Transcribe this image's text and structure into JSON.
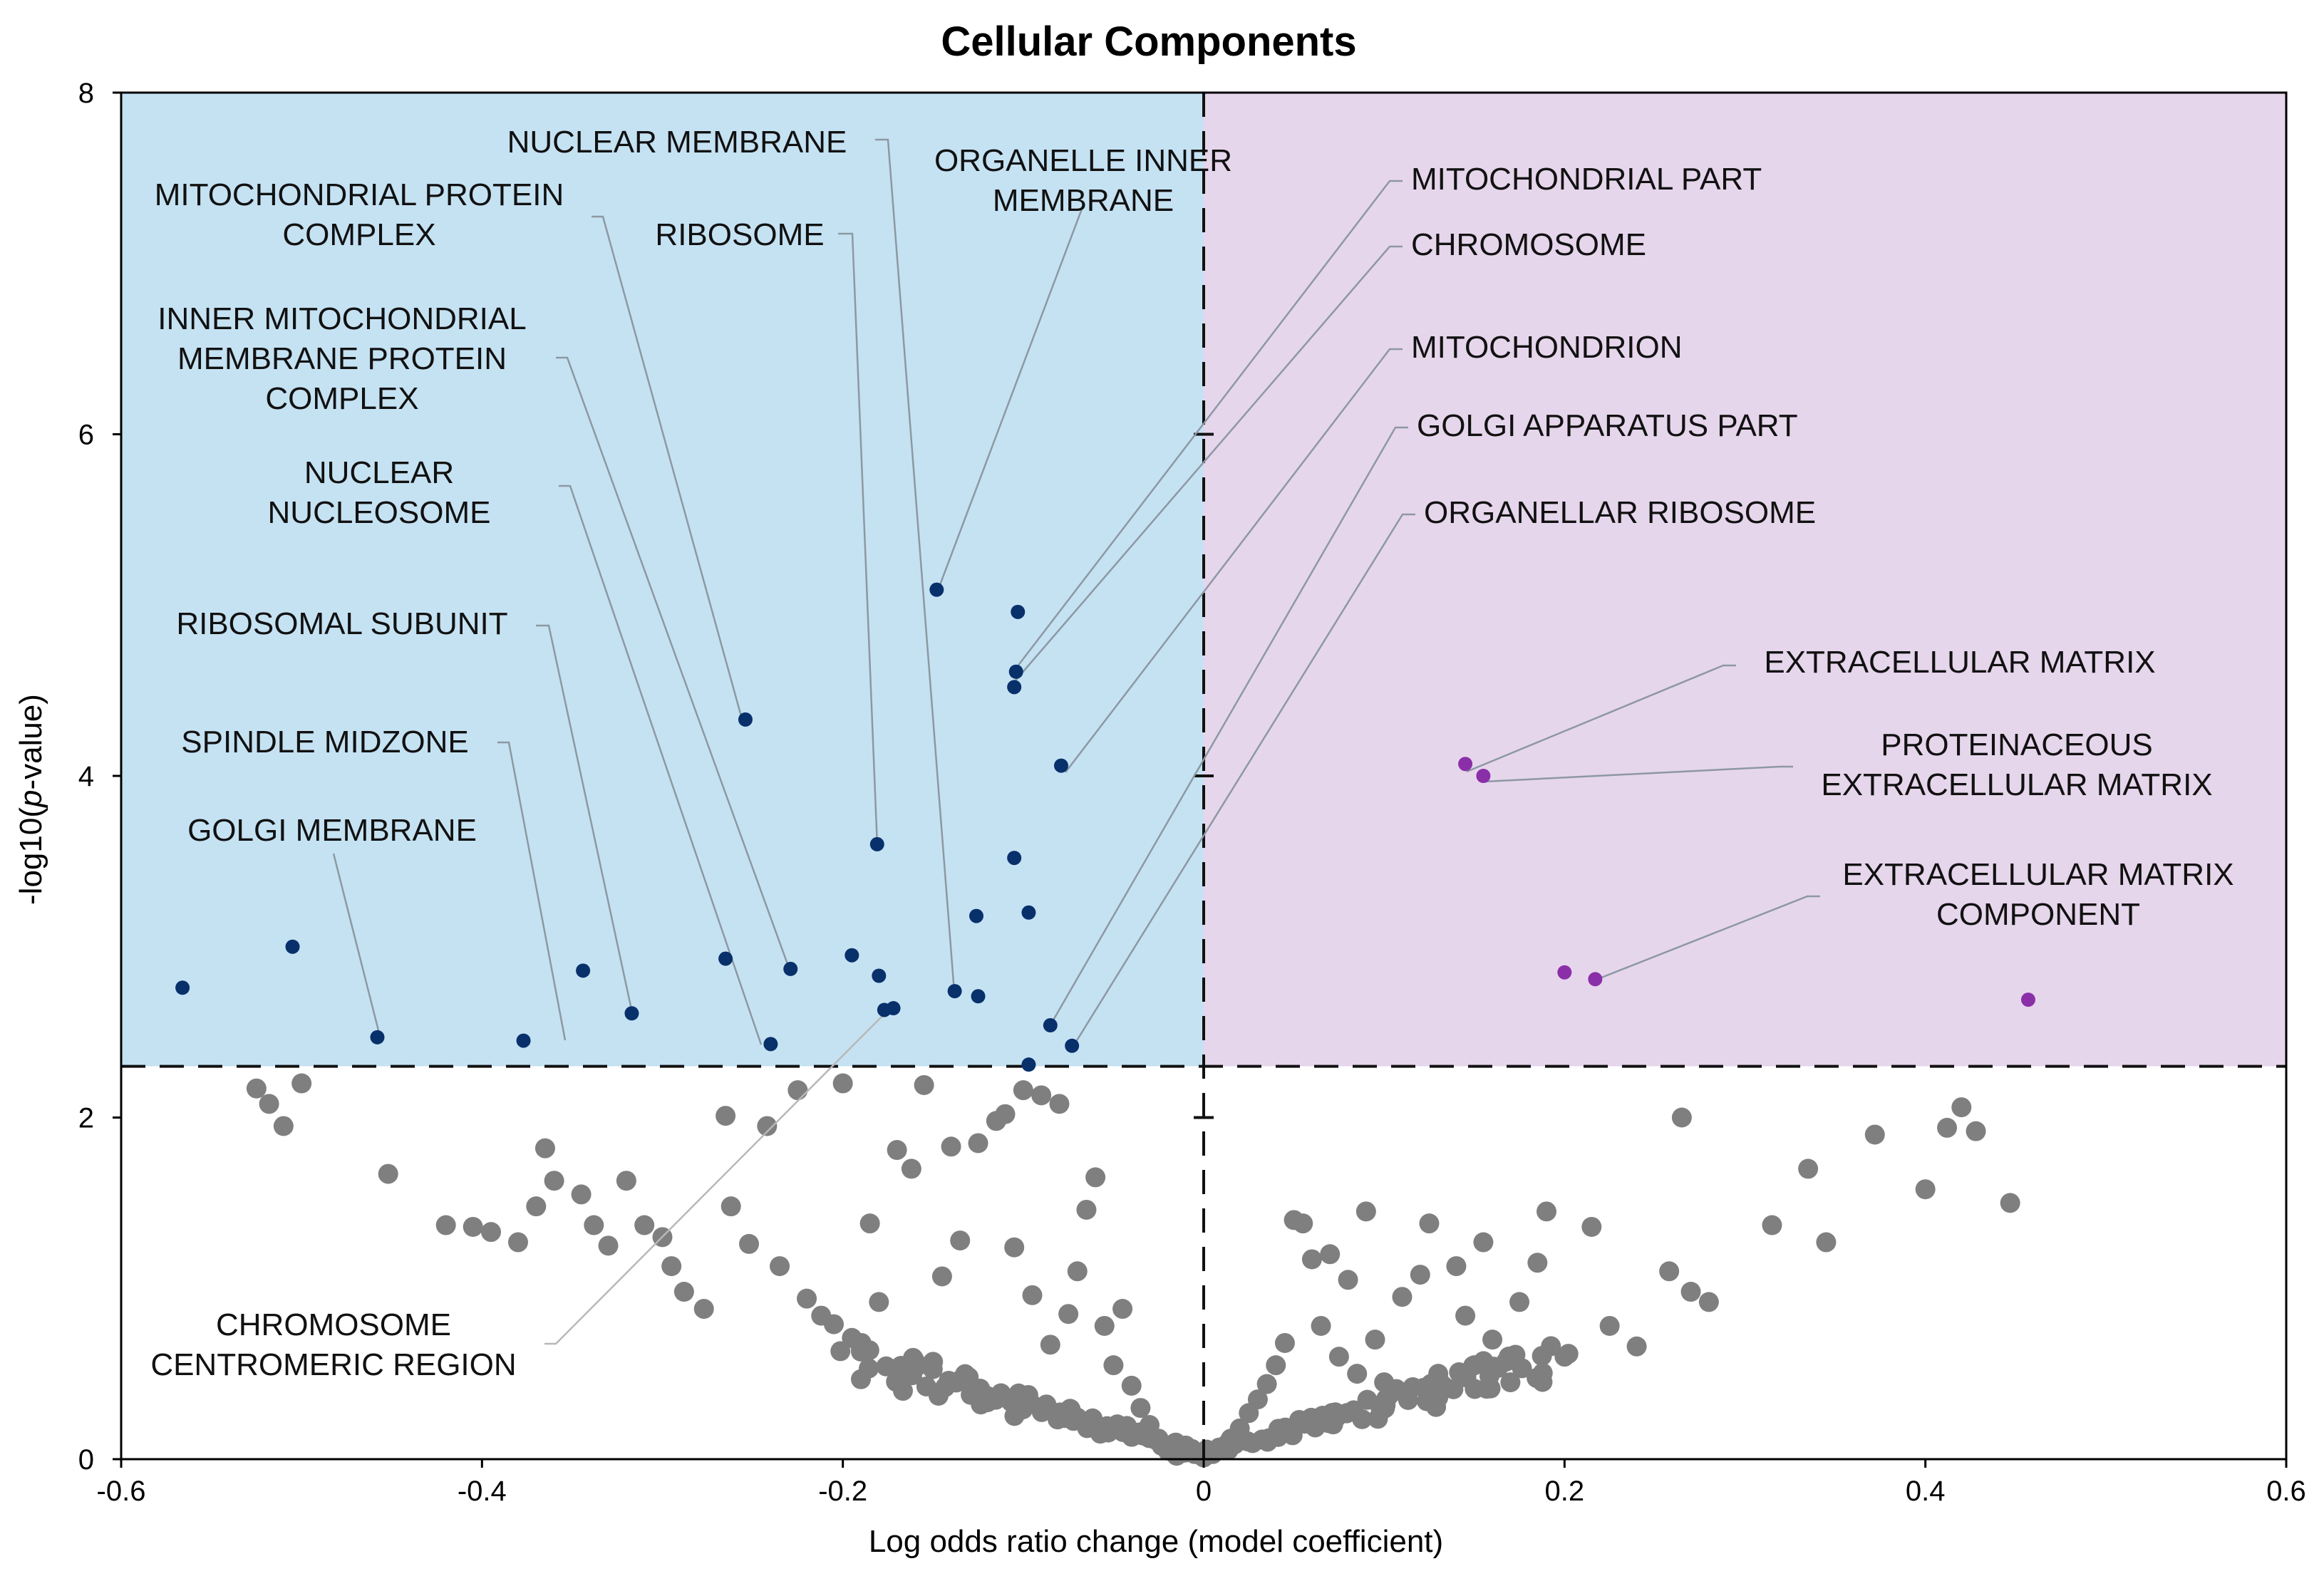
{
  "chart_data": {
    "type": "scatter",
    "title": "Cellular Components",
    "xlabel": "Log odds ratio change (model coefficient)",
    "ylabel_parts": [
      "-log10(",
      "p",
      "-value)"
    ],
    "xlim": [
      -0.6,
      0.6
    ],
    "ylim": [
      0,
      8
    ],
    "x_ticks": [
      "-0.6",
      "-0.4",
      "-0.2",
      "0",
      "0.2",
      "0.4",
      "0.6"
    ],
    "y_ticks": [
      "0",
      "2",
      "4",
      "6",
      "8"
    ],
    "significance_threshold_y": 2.3,
    "colors": {
      "enriched_down_region": "#c5e2f3",
      "enriched_up_region": "#e6d6ec",
      "down_point": "#08306b",
      "up_point": "#8b2fa8",
      "background_point": "#7f7f7f"
    },
    "significant_down_points": [
      [
        -0.566,
        2.76
      ],
      [
        -0.505,
        3.0
      ],
      [
        -0.458,
        2.47
      ],
      [
        -0.377,
        2.45
      ],
      [
        -0.344,
        2.86
      ],
      [
        -0.317,
        2.61
      ],
      [
        -0.265,
        2.93
      ],
      [
        -0.254,
        4.33
      ],
      [
        -0.24,
        2.43
      ],
      [
        -0.229,
        2.87
      ],
      [
        -0.195,
        2.95
      ],
      [
        -0.181,
        3.6
      ],
      [
        -0.18,
        2.83
      ],
      [
        -0.177,
        2.63
      ],
      [
        -0.172,
        2.64
      ],
      [
        -0.148,
        5.09
      ],
      [
        -0.138,
        2.74
      ],
      [
        -0.126,
        3.18
      ],
      [
        -0.125,
        2.71
      ],
      [
        -0.105,
        4.52
      ],
      [
        -0.105,
        3.52
      ],
      [
        -0.104,
        4.61
      ],
      [
        -0.103,
        4.96
      ],
      [
        -0.097,
        3.2
      ],
      [
        -0.097,
        2.31
      ],
      [
        -0.085,
        2.54
      ],
      [
        -0.079,
        4.06
      ],
      [
        -0.073,
        2.42
      ]
    ],
    "significant_up_points": [
      [
        0.145,
        4.07
      ],
      [
        0.155,
        4.0
      ],
      [
        0.2,
        2.85
      ],
      [
        0.217,
        2.81
      ],
      [
        0.457,
        2.69
      ]
    ],
    "background_points": [
      [
        -0.525,
        2.17
      ],
      [
        -0.518,
        2.08
      ],
      [
        -0.51,
        1.95
      ],
      [
        -0.5,
        2.2
      ],
      [
        -0.452,
        1.67
      ],
      [
        -0.42,
        1.37
      ],
      [
        -0.405,
        1.36
      ],
      [
        -0.395,
        1.33
      ],
      [
        -0.38,
        1.27
      ],
      [
        -0.37,
        1.48
      ],
      [
        -0.365,
        1.82
      ],
      [
        -0.36,
        1.63
      ],
      [
        -0.345,
        1.55
      ],
      [
        -0.338,
        1.37
      ],
      [
        -0.33,
        1.25
      ],
      [
        -0.32,
        1.63
      ],
      [
        -0.31,
        1.37
      ],
      [
        -0.3,
        1.3
      ],
      [
        -0.295,
        1.13
      ],
      [
        -0.288,
        0.98
      ],
      [
        -0.277,
        0.88
      ],
      [
        -0.265,
        2.01
      ],
      [
        -0.262,
        1.48
      ],
      [
        -0.252,
        1.26
      ],
      [
        -0.242,
        1.95
      ],
      [
        -0.235,
        1.13
      ],
      [
        -0.225,
        2.16
      ],
      [
        -0.22,
        0.94
      ],
      [
        -0.212,
        0.84
      ],
      [
        -0.205,
        0.79
      ],
      [
        -0.2,
        2.2
      ],
      [
        -0.195,
        0.71
      ],
      [
        -0.19,
        0.63
      ],
      [
        -0.185,
        1.38
      ],
      [
        -0.18,
        0.92
      ],
      [
        -0.17,
        1.81
      ],
      [
        -0.162,
        1.7
      ],
      [
        -0.155,
        2.19
      ],
      [
        -0.15,
        0.57
      ],
      [
        -0.145,
        1.07
      ],
      [
        -0.14,
        1.83
      ],
      [
        -0.135,
        1.28
      ],
      [
        -0.13,
        0.45
      ],
      [
        -0.125,
        1.85
      ],
      [
        -0.12,
        0.37
      ],
      [
        -0.115,
        1.98
      ],
      [
        -0.11,
        2.02
      ],
      [
        -0.105,
        1.24
      ],
      [
        -0.1,
        2.16
      ],
      [
        -0.095,
        0.96
      ],
      [
        -0.09,
        2.13
      ],
      [
        -0.085,
        0.67
      ],
      [
        -0.08,
        2.08
      ],
      [
        -0.075,
        0.85
      ],
      [
        -0.07,
        1.1
      ],
      [
        -0.065,
        1.46
      ],
      [
        -0.06,
        1.65
      ],
      [
        -0.055,
        0.78
      ],
      [
        -0.05,
        0.55
      ],
      [
        -0.045,
        0.88
      ],
      [
        -0.04,
        0.43
      ],
      [
        -0.035,
        0.3
      ],
      [
        -0.03,
        0.2
      ],
      [
        -0.025,
        0.12
      ],
      [
        -0.02,
        0.05
      ],
      [
        -0.015,
        0.02
      ],
      [
        -0.01,
        0.08
      ],
      [
        -0.005,
        0.03
      ],
      [
        0.0,
        0.01
      ],
      [
        0.005,
        0.03
      ],
      [
        0.01,
        0.06
      ],
      [
        0.015,
        0.12
      ],
      [
        0.02,
        0.18
      ],
      [
        0.025,
        0.27
      ],
      [
        0.03,
        0.35
      ],
      [
        0.035,
        0.44
      ],
      [
        0.04,
        0.55
      ],
      [
        0.045,
        0.68
      ],
      [
        0.05,
        1.4
      ],
      [
        0.055,
        1.38
      ],
      [
        0.06,
        1.17
      ],
      [
        0.065,
        0.78
      ],
      [
        0.07,
        1.2
      ],
      [
        0.075,
        0.6
      ],
      [
        0.08,
        1.05
      ],
      [
        0.085,
        0.5
      ],
      [
        0.09,
        1.45
      ],
      [
        0.095,
        0.7
      ],
      [
        0.1,
        0.45
      ],
      [
        0.11,
        0.95
      ],
      [
        0.12,
        1.08
      ],
      [
        0.125,
        1.38
      ],
      [
        0.13,
        0.5
      ],
      [
        0.14,
        1.13
      ],
      [
        0.145,
        0.84
      ],
      [
        0.15,
        0.55
      ],
      [
        0.155,
        1.27
      ],
      [
        0.16,
        0.7
      ],
      [
        0.17,
        0.45
      ],
      [
        0.175,
        0.92
      ],
      [
        0.185,
        1.15
      ],
      [
        0.19,
        1.45
      ],
      [
        0.2,
        0.6
      ],
      [
        0.215,
        1.36
      ],
      [
        0.225,
        0.78
      ],
      [
        0.24,
        0.66
      ],
      [
        0.258,
        1.1
      ],
      [
        0.265,
        2.0
      ],
      [
        0.27,
        0.98
      ],
      [
        0.28,
        0.92
      ],
      [
        0.315,
        1.37
      ],
      [
        0.335,
        1.7
      ],
      [
        0.345,
        1.27
      ],
      [
        0.372,
        1.9
      ],
      [
        0.4,
        1.58
      ],
      [
        0.412,
        1.94
      ],
      [
        0.42,
        2.06
      ],
      [
        0.428,
        1.92
      ],
      [
        0.447,
        1.5
      ]
    ],
    "annotations": [
      {
        "lines": [
          "NUCLEAR MEMBRANE"
        ],
        "side": "down"
      },
      {
        "lines": [
          "ORGANELLE INNER",
          "MEMBRANE"
        ],
        "side": "down"
      },
      {
        "lines": [
          "MITOCHONDRIAL PROTEIN",
          "COMPLEX"
        ],
        "side": "down"
      },
      {
        "lines": [
          "RIBOSOME"
        ],
        "side": "down"
      },
      {
        "lines": [
          "INNER MITOCHONDRIAL",
          "MEMBRANE PROTEIN",
          "COMPLEX"
        ],
        "side": "down"
      },
      {
        "lines": [
          "NUCLEAR",
          "NUCLEOSOME"
        ],
        "side": "down"
      },
      {
        "lines": [
          "RIBOSOMAL SUBUNIT"
        ],
        "side": "down"
      },
      {
        "lines": [
          "SPINDLE MIDZONE"
        ],
        "side": "down"
      },
      {
        "lines": [
          "GOLGI MEMBRANE"
        ],
        "side": "down"
      },
      {
        "lines": [
          "CHROMOSOME",
          "CENTROMERIC REGION"
        ],
        "side": "down"
      },
      {
        "lines": [
          "MITOCHONDRIAL PART"
        ],
        "side": "down"
      },
      {
        "lines": [
          "CHROMOSOME"
        ],
        "side": "down"
      },
      {
        "lines": [
          "MITOCHONDRION"
        ],
        "side": "down"
      },
      {
        "lines": [
          "GOLGI APPARATUS PART"
        ],
        "side": "down"
      },
      {
        "lines": [
          "ORGANELLAR RIBOSOME"
        ],
        "side": "down"
      },
      {
        "lines": [
          "EXTRACELLULAR MATRIX"
        ],
        "side": "up"
      },
      {
        "lines": [
          "PROTEINACEOUS",
          "EXTRACELLULAR MATRIX"
        ],
        "side": "up"
      },
      {
        "lines": [
          "EXTRACELLULAR MATRIX",
          "COMPONENT"
        ],
        "side": "up"
      }
    ]
  }
}
